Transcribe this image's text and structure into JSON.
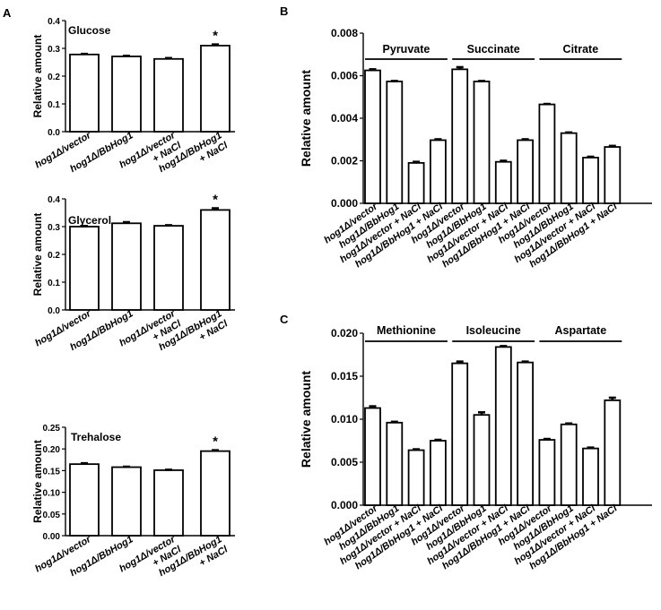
{
  "panels": {
    "A": "A",
    "B": "B",
    "C": "C"
  },
  "chart_data": [
    {
      "id": "A1",
      "panel": "A",
      "type": "bar",
      "title": "Glucose",
      "ylabel": "Relative amount",
      "ylim": [
        0,
        0.4
      ],
      "yticks": [
        "0.0",
        "0.1",
        "0.2",
        "0.3",
        "0.4"
      ],
      "categories": [
        [
          "hog1Δ/vector"
        ],
        [
          "hog1Δ/BbHog1"
        ],
        [
          "hog1Δ/vector",
          "+ NaCl"
        ],
        [
          "hog1Δ/BbHog1",
          "+ NaCl"
        ]
      ],
      "values": [
        0.278,
        0.271,
        0.262,
        0.31
      ],
      "errors": [
        0.002,
        0.002,
        0.003,
        0.004
      ],
      "significance": [
        "",
        "",
        "",
        "*"
      ]
    },
    {
      "id": "A2",
      "panel": "A",
      "type": "bar",
      "title": "Glycerol",
      "ylabel": "Relative amount",
      "ylim": [
        0,
        0.4
      ],
      "yticks": [
        "0.0",
        "0.1",
        "0.2",
        "0.3",
        "0.4"
      ],
      "categories": [
        [
          "hog1Δ/vector"
        ],
        [
          "hog1Δ/BbHog1"
        ],
        [
          "hog1Δ/vector",
          "+ NaCl"
        ],
        [
          "hog1Δ/BbHog1",
          "+ NaCl"
        ]
      ],
      "values": [
        0.3,
        0.312,
        0.303,
        0.36
      ],
      "errors": [
        0.002,
        0.004,
        0.002,
        0.006
      ],
      "significance": [
        "",
        "",
        "",
        "*"
      ]
    },
    {
      "id": "A3",
      "panel": "A",
      "type": "bar",
      "title": "Trehalose",
      "ylabel": "Relative amount",
      "ylim": [
        0,
        0.25
      ],
      "yticks": [
        "0.00",
        "0.05",
        "0.10",
        "0.15",
        "0.20",
        "0.25"
      ],
      "categories": [
        [
          "hog1Δ/vector"
        ],
        [
          "hog1Δ/BbHog1"
        ],
        [
          "hog1Δ/vector",
          "+ NaCl"
        ],
        [
          "hog1Δ/BbHog1",
          "+ NaCl"
        ]
      ],
      "values": [
        0.165,
        0.158,
        0.151,
        0.195
      ],
      "errors": [
        0.002,
        0.001,
        0.001,
        0.002
      ],
      "significance": [
        "",
        "",
        "",
        "*"
      ]
    },
    {
      "id": "B",
      "panel": "B",
      "type": "bar",
      "ylabel": "Relative amount",
      "ylim": [
        0,
        0.008
      ],
      "yticks": [
        "0.000",
        "0.002",
        "0.004",
        "0.006",
        "0.008"
      ],
      "groups": [
        "Pyruvate",
        "Succinate",
        "Citrate"
      ],
      "categories": [
        "hog1Δ/vector",
        "hog1Δ/BbHog1",
        "hog1Δ/vector + NaCl",
        "hog1Δ/BbHog1 + NaCl",
        "hog1Δ/vector",
        "hog1Δ/BbHog1",
        "hog1Δ/vector + NaCl",
        "hog1Δ/BbHog1 + NaCl",
        "hog1Δ/vector",
        "hog1Δ/BbHog1",
        "hog1Δ/vector + NaCl",
        "hog1Δ/BbHog1 + NaCl"
      ],
      "values": [
        0.00625,
        0.00573,
        0.0019,
        0.00297,
        0.0063,
        0.00573,
        0.00195,
        0.00297,
        0.00465,
        0.0033,
        0.00215,
        0.00265
      ],
      "errors": [
        5e-05,
        2e-05,
        5e-05,
        4e-05,
        0.0001,
        2e-05,
        5e-05,
        4e-05,
        2e-05,
        3e-05,
        4e-05,
        5e-05
      ]
    },
    {
      "id": "C",
      "panel": "C",
      "type": "bar",
      "ylabel": "Relative amount",
      "ylim": [
        0,
        0.02
      ],
      "yticks": [
        "0.000",
        "0.005",
        "0.010",
        "0.015",
        "0.020"
      ],
      "groups": [
        "Methionine",
        "Isoleucine",
        "Aspartate"
      ],
      "categories": [
        "hog1Δ/vector",
        "hog1Δ/BbHog1",
        "hog1Δ/vector + NaCl",
        "hog1Δ/BbHog1 + NaCl",
        "hog1Δ/vector",
        "hog1Δ/BbHog1",
        "hog1Δ/vector + NaCl",
        "hog1Δ/BbHog1 + NaCl",
        "hog1Δ/vector",
        "hog1Δ/BbHog1",
        "hog1Δ/vector + NaCl",
        "hog1Δ/BbHog1 + NaCl"
      ],
      "values": [
        0.0113,
        0.0096,
        0.0064,
        0.0075,
        0.0165,
        0.0105,
        0.0184,
        0.0166,
        0.0076,
        0.0094,
        0.0066,
        0.0122
      ],
      "errors": [
        0.0002,
        0.0001,
        0.0001,
        0.0001,
        0.0002,
        0.0003,
        0.0001,
        0.0001,
        0.0001,
        0.0001,
        0.0001,
        0.0003
      ]
    }
  ]
}
